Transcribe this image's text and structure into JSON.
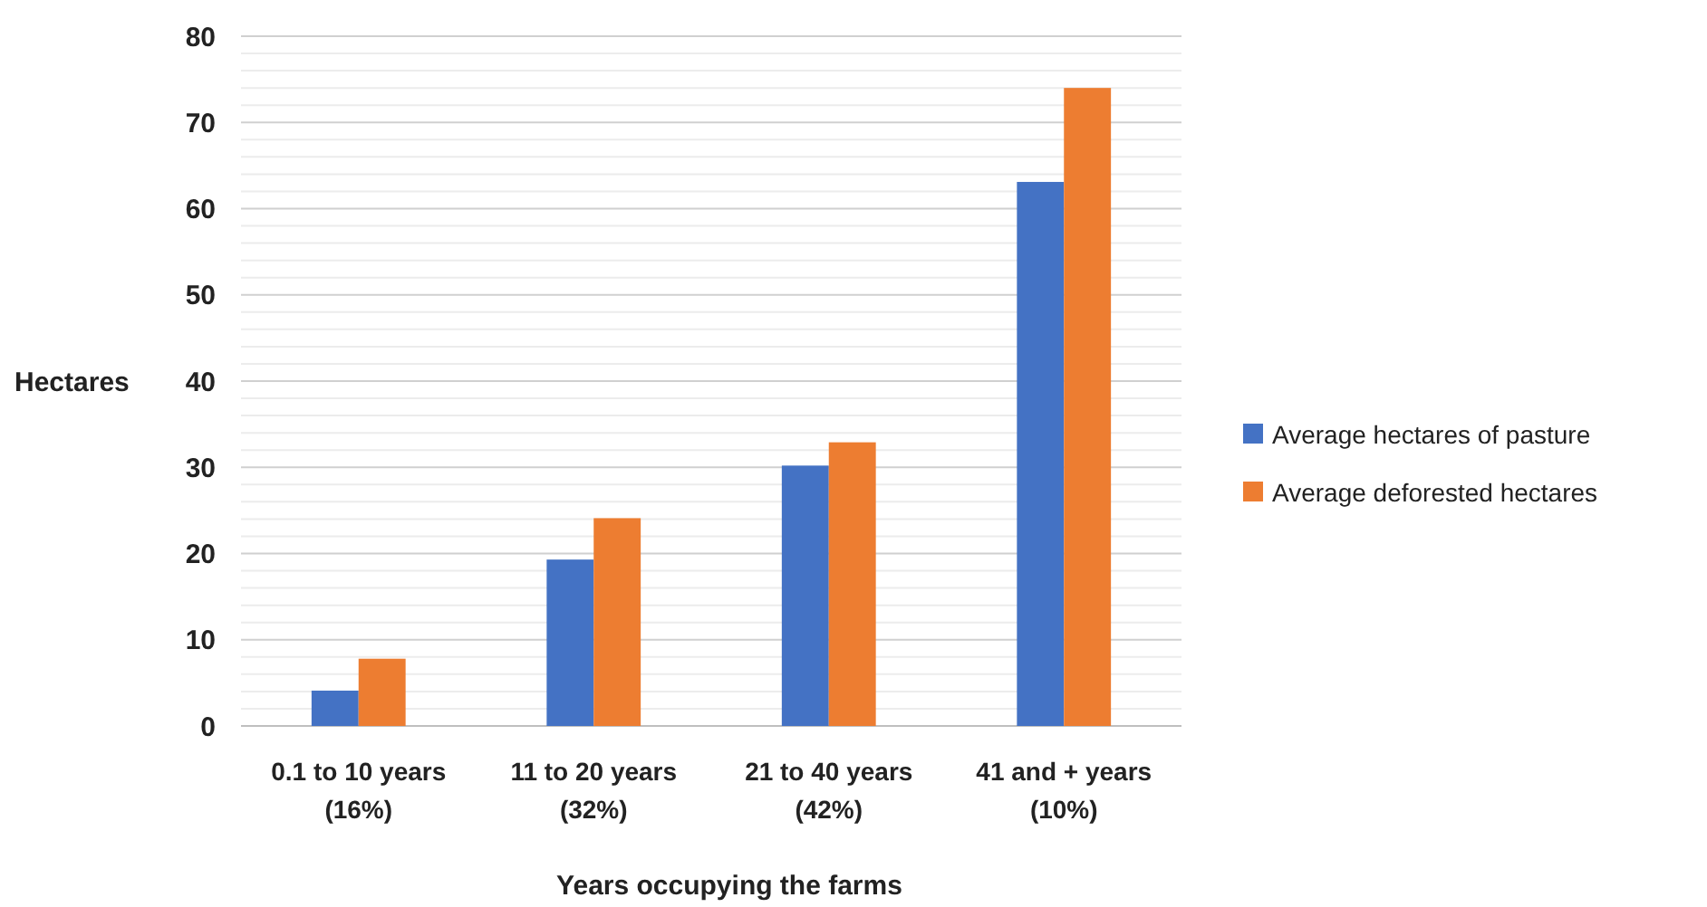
{
  "chart_data": {
    "type": "bar",
    "xlabel": "Years occupying the farms",
    "ylabel": "Hectares",
    "categories": [
      "0.1 to 10 years\n(16%)",
      "11 to 20 years\n(32%)",
      "21 to 40 years\n(42%)",
      "41 and + years\n(10%)"
    ],
    "series": [
      {
        "name": "Average hectares of pasture",
        "color": "#4472c4",
        "values": [
          4.1,
          19.3,
          30.2,
          63.1
        ]
      },
      {
        "name": "Average deforested hectares",
        "color": "#ed7d31",
        "values": [
          7.8,
          24.1,
          32.9,
          74
        ]
      }
    ],
    "ylim": [
      0,
      80
    ],
    "yticks": [
      0,
      {
        "value": 2,
        "label": null
      },
      {
        "value": 4,
        "label": null
      },
      {
        "value": 6,
        "label": null
      },
      {
        "value": 8,
        "label": null
      },
      10,
      {
        "value": 12,
        "label": null
      },
      {
        "value": 14,
        "label": null
      },
      {
        "value": 16,
        "label": null
      },
      {
        "value": 18,
        "label": null
      },
      20,
      {
        "value": 22,
        "label": null
      },
      {
        "value": 24,
        "label": null
      },
      {
        "value": 26,
        "label": null
      },
      {
        "value": 28,
        "label": null
      },
      30,
      {
        "value": 32,
        "label": null
      },
      {
        "value": 34,
        "label": null
      },
      {
        "value": 36,
        "label": null
      },
      {
        "value": 38,
        "label": null
      },
      40,
      {
        "value": 42,
        "label": null
      },
      {
        "value": 44,
        "label": null
      },
      {
        "value": 46,
        "label": null
      },
      {
        "value": 48,
        "label": null
      },
      50,
      {
        "value": 52,
        "label": null
      },
      {
        "value": 54,
        "label": null
      },
      {
        "value": 56,
        "label": null
      },
      {
        "value": 58,
        "label": null
      },
      60,
      {
        "value": 62,
        "label": null
      },
      {
        "value": 64,
        "label": null
      },
      {
        "value": 66,
        "label": null
      },
      {
        "value": 68,
        "label": null
      },
      70,
      {
        "value": 72,
        "label": null
      },
      {
        "value": 74,
        "label": null
      },
      {
        "value": 76,
        "label": null
      },
      {
        "value": 78,
        "label": null
      },
      80
    ],
    "grid": true,
    "legend": "right"
  }
}
